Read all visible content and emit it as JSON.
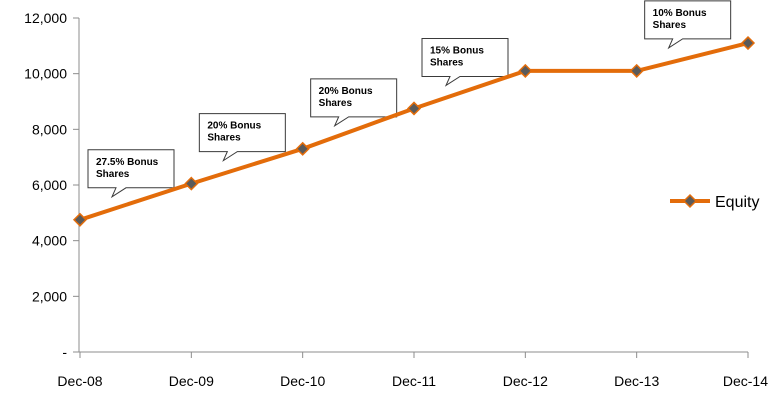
{
  "chart_data": {
    "type": "line",
    "categories": [
      "Dec-08",
      "Dec-09",
      "Dec-10",
      "Dec-11",
      "Dec-12",
      "Dec-13",
      "Dec-14"
    ],
    "series": [
      {
        "name": "Equity",
        "values": [
          4750,
          6050,
          7300,
          8750,
          10100,
          10100,
          11100
        ],
        "color": "#E36C0A",
        "marker_color": "#5A5A5A"
      }
    ],
    "ylim": [
      0,
      12000
    ],
    "yticks": [
      0,
      2000,
      4000,
      6000,
      8000,
      10000,
      12000
    ],
    "ytick_labels": [
      "-",
      "2,000",
      "4,000",
      "6,000",
      "8,000",
      "10,000",
      "12,000"
    ],
    "grid": false,
    "legend_position": "right",
    "annotations": [
      {
        "category": "Dec-08",
        "lines": [
          "27.5% Bonus",
          "Shares"
        ]
      },
      {
        "category": "Dec-09",
        "lines": [
          "20% Bonus",
          "Shares"
        ]
      },
      {
        "category": "Dec-10",
        "lines": [
          "20% Bonus",
          "Shares"
        ]
      },
      {
        "category": "Dec-11",
        "lines": [
          "15% Bonus",
          "Shares"
        ]
      },
      {
        "category": "Dec-13",
        "lines": [
          "10% Bonus",
          "Shares"
        ]
      }
    ],
    "title": "",
    "xlabel": "",
    "ylabel": ""
  }
}
